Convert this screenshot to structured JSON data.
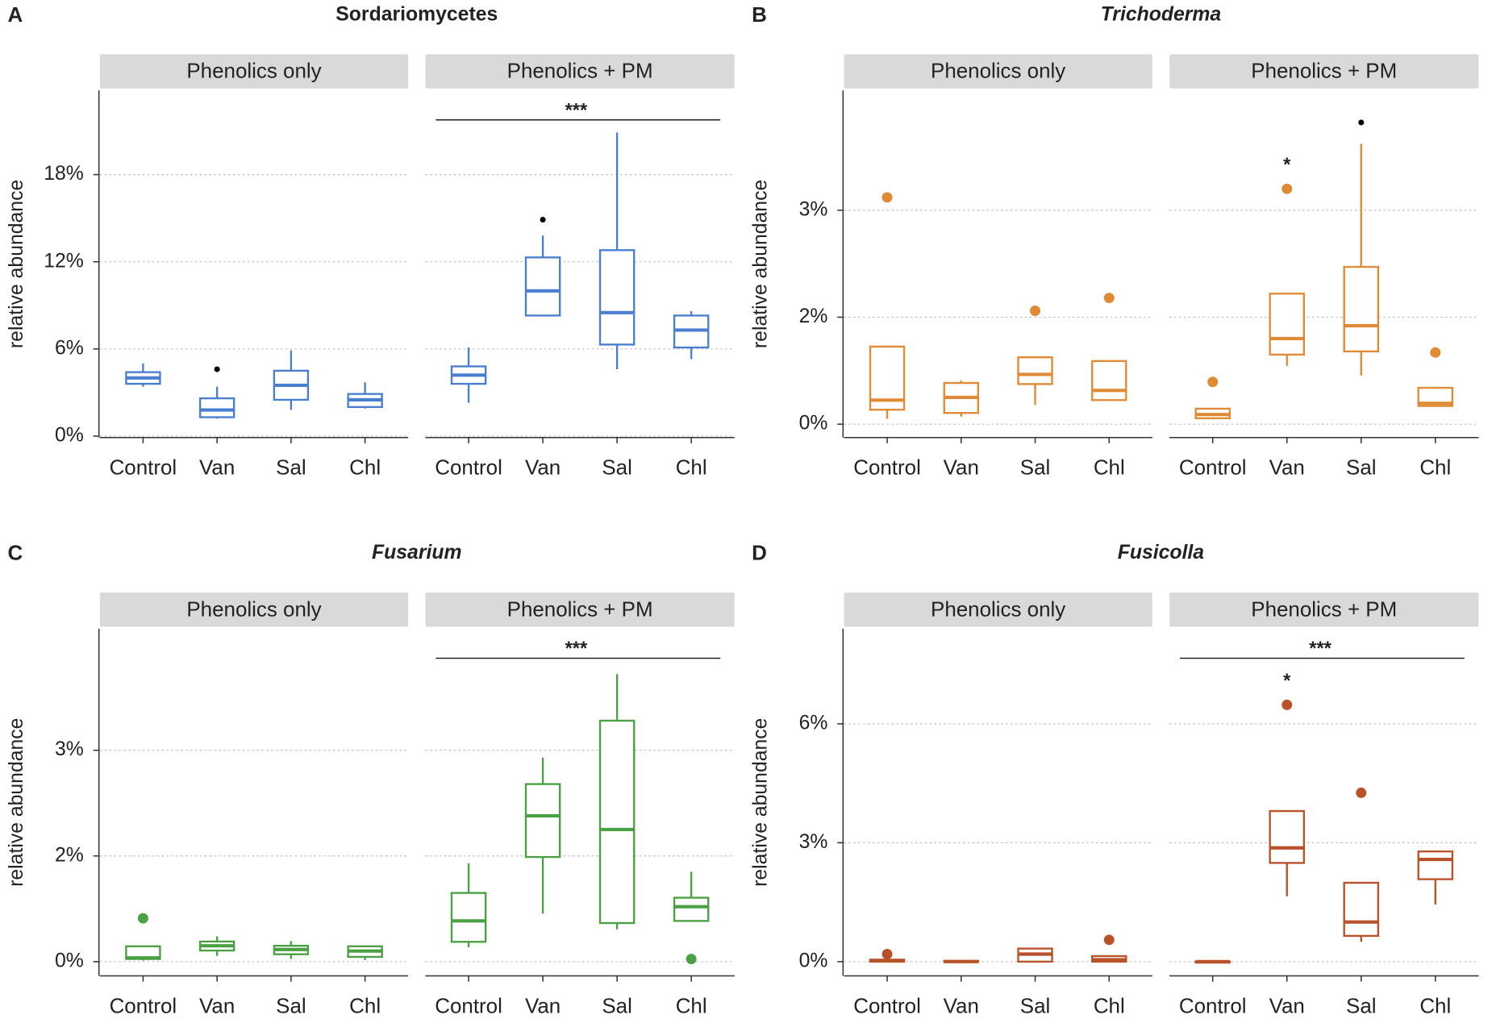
{
  "chart_data": [
    {
      "type": "box",
      "label": "A",
      "title": "Sordariomycetes",
      "italic": false,
      "color": "#4a7fd0",
      "ylabel": "relative abundance",
      "categories": [
        "Control",
        "Van",
        "Sal",
        "Chl"
      ],
      "ylim": [
        -0.1,
        23.8
      ],
      "yticks": [
        {
          "value": 0,
          "label": "0%"
        },
        {
          "value": 6,
          "label": "6%"
        },
        {
          "value": 12,
          "label": "12%"
        },
        {
          "value": 18,
          "label": "18%"
        }
      ],
      "grid": true,
      "facets": [
        {
          "name": "Phenolics only",
          "boxes": [
            {
              "min": 3.4,
              "q1": 3.6,
              "median": 4.0,
              "q3": 4.4,
              "max": 5.0,
              "outliers": []
            },
            {
              "min": 1.2,
              "q1": 1.3,
              "median": 1.8,
              "q3": 2.6,
              "max": 3.4,
              "outliers": [
                4.6
              ],
              "outlier_color": "#000000"
            },
            {
              "min": 1.8,
              "q1": 2.5,
              "median": 3.5,
              "q3": 4.5,
              "max": 5.9,
              "outliers": []
            },
            {
              "min": 1.9,
              "q1": 2.0,
              "median": 2.5,
              "q3": 2.9,
              "max": 3.7,
              "outliers": []
            }
          ]
        },
        {
          "name": "Phenolics + PM",
          "significance": "***",
          "boxes": [
            {
              "min": 2.3,
              "q1": 3.6,
              "median": 4.2,
              "q3": 4.8,
              "max": 6.1,
              "outliers": []
            },
            {
              "min": 8.3,
              "q1": 8.3,
              "median": 10.0,
              "q3": 12.3,
              "max": 13.8,
              "outliers": [
                14.9
              ],
              "outlier_color": "#000000"
            },
            {
              "min": 4.6,
              "q1": 6.3,
              "median": 8.5,
              "q3": 12.8,
              "max": 20.9,
              "outliers": []
            },
            {
              "min": 5.3,
              "q1": 6.1,
              "median": 7.3,
              "q3": 8.3,
              "max": 8.6,
              "outliers": []
            }
          ]
        }
      ]
    },
    {
      "type": "box",
      "label": "B",
      "title": "Trichoderma",
      "italic": true,
      "color": "#e08a35",
      "ylabel": "relative abundance",
      "categories": [
        "Control",
        "Van",
        "Sal",
        "Chl"
      ],
      "ylim": [
        -0.25,
        4.12
      ],
      "yticks": [
        {
          "value": 0,
          "label": "0%"
        },
        {
          "value": 2,
          "label": "2%"
        },
        {
          "value": 3,
          "label": "3%"
        }
      ],
      "grid": true,
      "facets": [
        {
          "name": "Phenolics only",
          "boxes": [
            {
              "min": 0.1,
              "q1": 0.27,
              "median": 0.45,
              "q3": 1.45,
              "max": 1.45,
              "outliers": [
                3.12
              ]
            },
            {
              "min": 0.14,
              "q1": 0.21,
              "median": 0.5,
              "q3": 0.77,
              "max": 0.82,
              "outliers": []
            },
            {
              "min": 0.36,
              "q1": 0.75,
              "median": 0.93,
              "q3": 1.25,
              "max": 1.25,
              "outliers": [
                2.06
              ]
            },
            {
              "min": 0.45,
              "q1": 0.45,
              "median": 0.63,
              "q3": 1.18,
              "max": 1.18,
              "outliers": [
                2.18
              ]
            }
          ]
        },
        {
          "name": "Phenolics + PM",
          "boxes": [
            {
              "min": 0.09,
              "q1": 0.11,
              "median": 0.18,
              "q3": 0.29,
              "max": 0.29,
              "outliers": [
                0.79
              ]
            },
            {
              "min": 1.09,
              "q1": 1.3,
              "median": 1.6,
              "q3": 2.22,
              "max": 2.22,
              "outliers": [
                3.2
              ],
              "annotation": "*"
            },
            {
              "min": 0.91,
              "q1": 1.36,
              "median": 1.84,
              "q3": 2.47,
              "max": 3.62,
              "outliers": [
                3.82
              ],
              "outlier_color": "#000000"
            },
            {
              "min": 0.34,
              "q1": 0.34,
              "median": 0.39,
              "q3": 0.68,
              "max": 0.68,
              "outliers": [
                1.34
              ]
            }
          ]
        }
      ]
    },
    {
      "type": "box",
      "label": "C",
      "title": "Fusarium",
      "italic": true,
      "color": "#4aa043",
      "ylabel": "relative abundance",
      "categories": [
        "Control",
        "Van",
        "Sal",
        "Chl"
      ],
      "ylim": [
        -0.27,
        4.15
      ],
      "yticks": [
        {
          "value": 0,
          "label": "0%"
        },
        {
          "value": 2,
          "label": "2%"
        },
        {
          "value": 3,
          "label": "3%"
        }
      ],
      "grid": true,
      "facets": [
        {
          "name": "Phenolics only",
          "boxes": [
            {
              "min": 0.02,
              "q1": 0.05,
              "median": 0.07,
              "q3": 0.29,
              "max": 0.29,
              "outliers": [
                0.82
              ]
            },
            {
              "min": 0.11,
              "q1": 0.21,
              "median": 0.3,
              "q3": 0.38,
              "max": 0.48,
              "outliers": []
            },
            {
              "min": 0.05,
              "q1": 0.14,
              "median": 0.23,
              "q3": 0.3,
              "max": 0.39,
              "outliers": []
            },
            {
              "min": 0.03,
              "q1": 0.09,
              "median": 0.2,
              "q3": 0.29,
              "max": 0.3,
              "outliers": []
            }
          ]
        },
        {
          "name": "Phenolics + PM",
          "significance": "***",
          "boxes": [
            {
              "min": 0.27,
              "q1": 0.375,
              "median": 0.77,
              "q3": 1.3,
              "max": 1.86,
              "outliers": []
            },
            {
              "min": 0.91,
              "q1": 1.98,
              "median": 2.38,
              "q3": 2.68,
              "max": 2.93,
              "outliers": []
            },
            {
              "min": 0.61,
              "q1": 0.73,
              "median": 2.25,
              "q3": 3.28,
              "max": 3.72,
              "outliers": []
            },
            {
              "min": 0.77,
              "q1": 0.77,
              "median": 1.04,
              "q3": 1.21,
              "max": 1.7,
              "outliers": [
                0.05
              ]
            }
          ]
        }
      ]
    },
    {
      "type": "box",
      "label": "D",
      "title": "Fusicolla",
      "italic": true,
      "color": "#b9512b",
      "ylabel": "relative abundance",
      "categories": [
        "Control",
        "Van",
        "Sal",
        "Chl"
      ],
      "ylim": [
        -0.36,
        8.4
      ],
      "yticks": [
        {
          "value": 0,
          "label": "0%"
        },
        {
          "value": 3,
          "label": "3%"
        },
        {
          "value": 6,
          "label": "6%"
        }
      ],
      "grid": true,
      "facets": [
        {
          "name": "Phenolics only",
          "boxes": [
            {
              "min": 0,
              "q1": 0,
              "median": 0.02,
              "q3": 0.05,
              "max": 0.05,
              "outliers": [
                0.19
              ]
            },
            {
              "min": 0,
              "q1": 0,
              "median": 0,
              "q3": 0.02,
              "max": 0.02,
              "outliers": []
            },
            {
              "min": 0,
              "q1": 0,
              "median": 0.19,
              "q3": 0.33,
              "max": 0.33,
              "outliers": []
            },
            {
              "min": 0,
              "q1": 0,
              "median": 0.05,
              "q3": 0.14,
              "max": 0.14,
              "outliers": [
                0.55
              ]
            }
          ]
        },
        {
          "name": "Phenolics + PM",
          "significance": "***",
          "boxes": [
            {
              "min": 0,
              "q1": 0,
              "median": 0,
              "q3": 0,
              "max": 0,
              "outliers": []
            },
            {
              "min": 1.65,
              "q1": 2.49,
              "median": 2.87,
              "q3": 3.8,
              "max": 3.8,
              "outliers": [
                6.48
              ],
              "annotation": "*"
            },
            {
              "min": 0.5,
              "q1": 0.65,
              "median": 1.0,
              "q3": 1.99,
              "max": 1.99,
              "outliers": [
                4.26
              ]
            },
            {
              "min": 1.44,
              "q1": 2.08,
              "median": 2.58,
              "q3": 2.78,
              "max": 2.78,
              "outliers": []
            }
          ]
        }
      ]
    }
  ]
}
